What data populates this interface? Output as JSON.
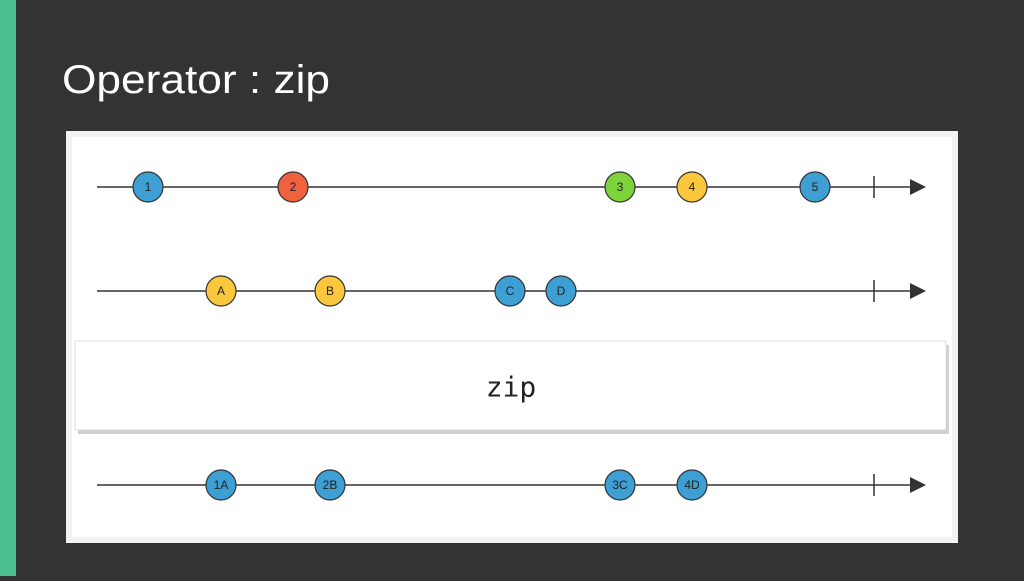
{
  "title": "Operator : zip",
  "operator": "zip",
  "streams": [
    {
      "marbles": [
        {
          "label": "1",
          "color": "#3d9fd3"
        },
        {
          "label": "2",
          "color": "#f0613f"
        },
        {
          "label": "3",
          "color": "#7ed33a"
        },
        {
          "label": "4",
          "color": "#fbc73d"
        },
        {
          "label": "5",
          "color": "#3d9fd3"
        }
      ]
    },
    {
      "marbles": [
        {
          "label": "A",
          "color": "#fbc73d"
        },
        {
          "label": "B",
          "color": "#fbc73d"
        },
        {
          "label": "C",
          "color": "#3d9fd3"
        },
        {
          "label": "D",
          "color": "#3d9fd3"
        }
      ]
    },
    {
      "marbles": [
        {
          "label": "1A",
          "color": "#3d9fd3"
        },
        {
          "label": "2B",
          "color": "#3d9fd3"
        },
        {
          "label": "3C",
          "color": "#3d9fd3"
        },
        {
          "label": "4D",
          "color": "#3d9fd3"
        }
      ]
    }
  ]
}
